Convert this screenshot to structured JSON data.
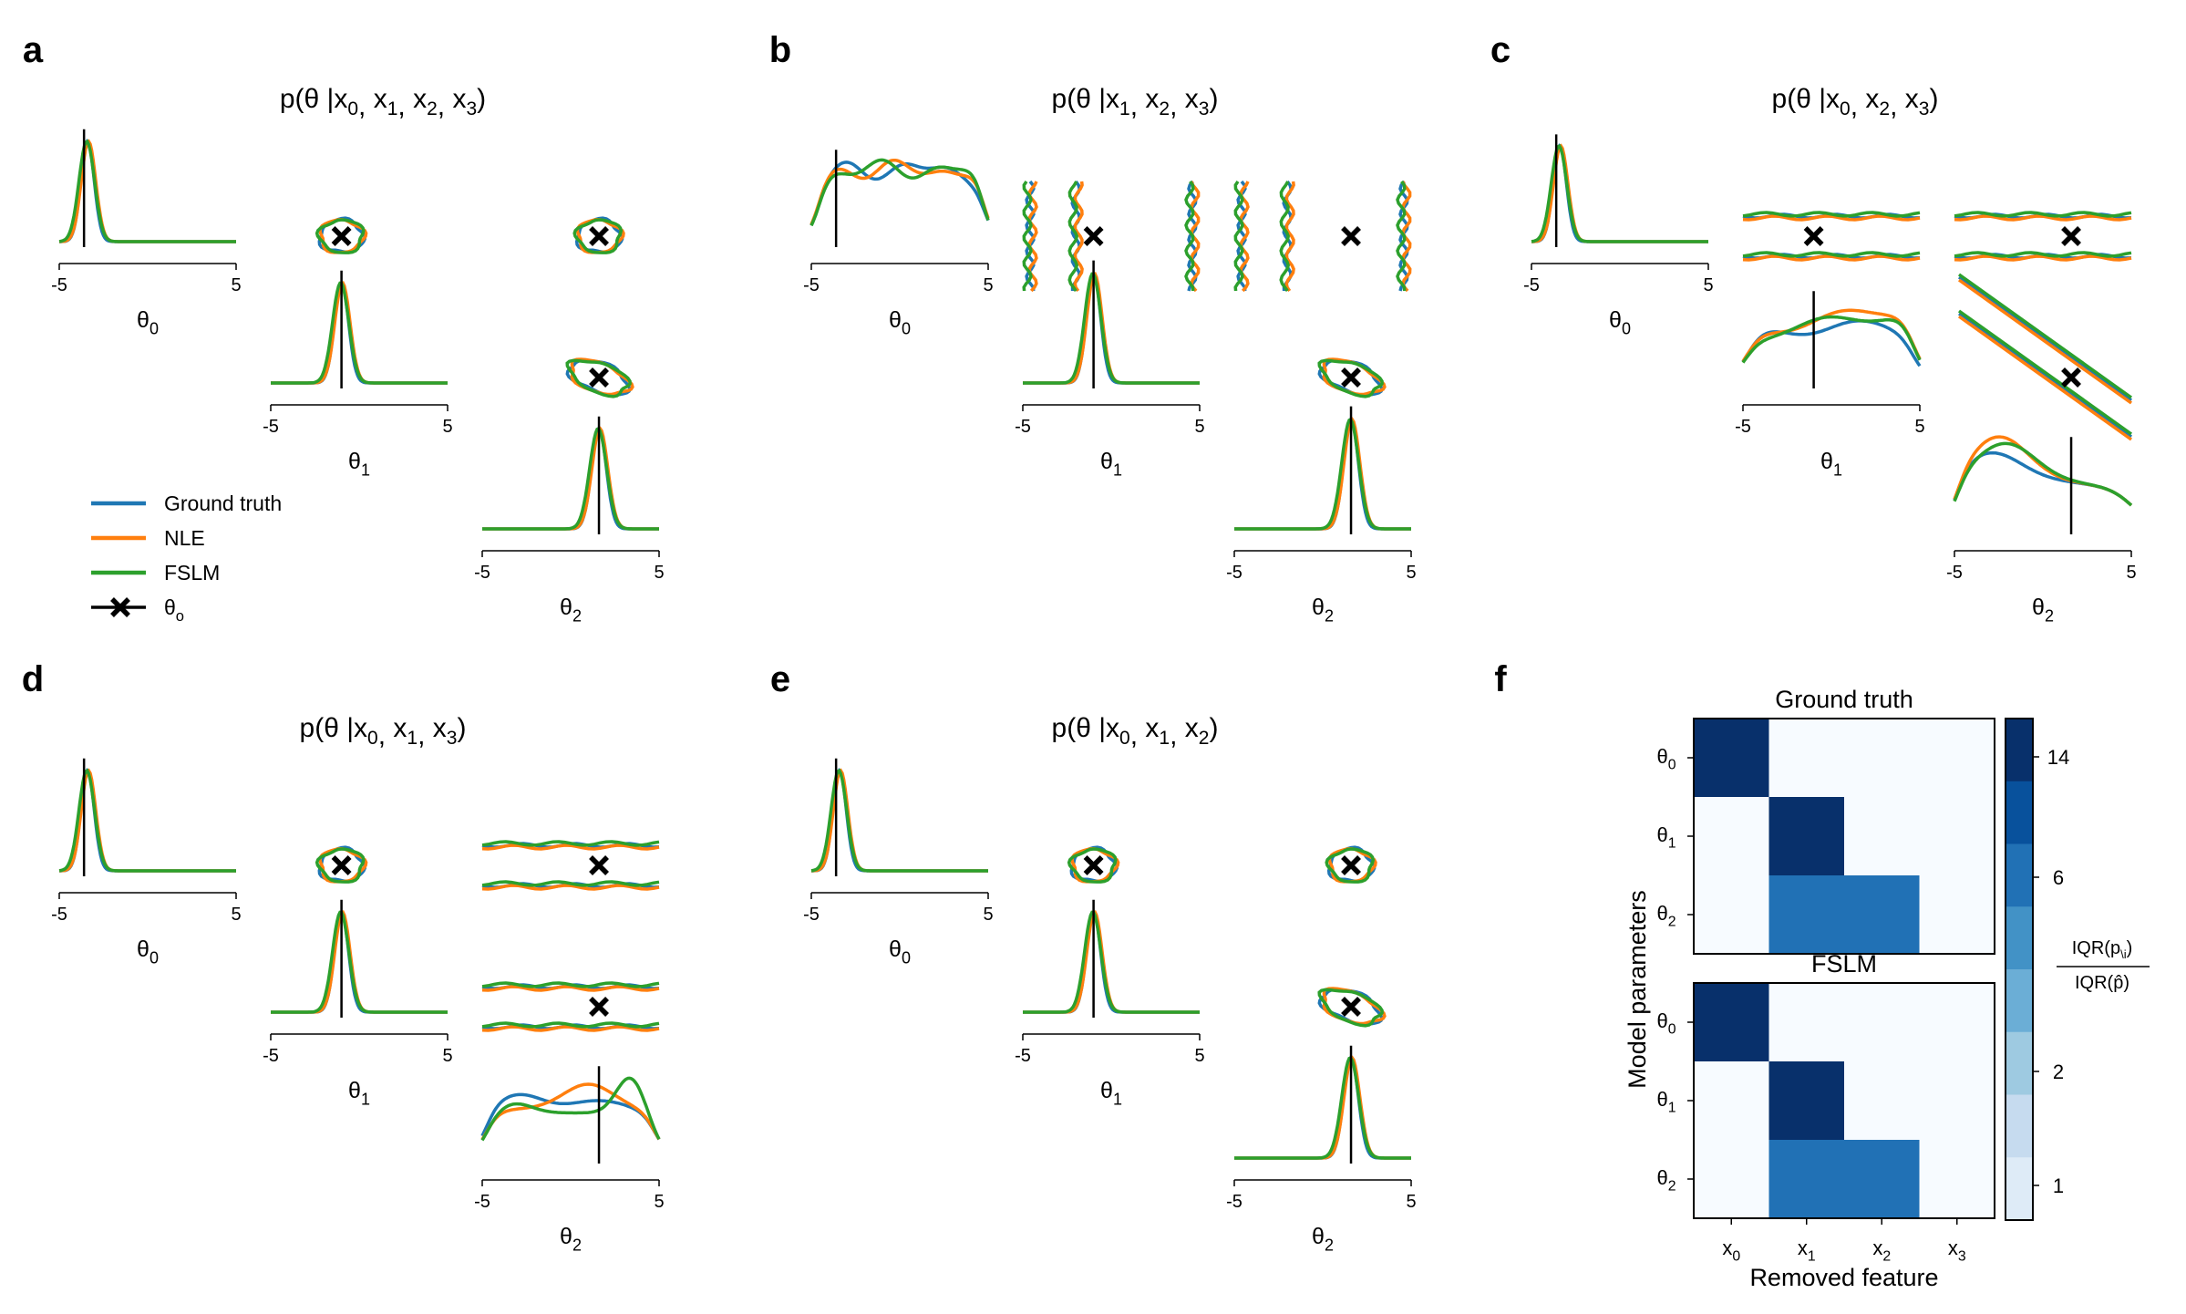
{
  "colors": {
    "ground_truth": "#1f77b4",
    "nle": "#ff7f0e",
    "fslm": "#2ca02c",
    "theta_o": "#000000"
  },
  "legend": {
    "items": [
      {
        "key": "ground_truth",
        "label": "Ground truth"
      },
      {
        "key": "nle",
        "label": "NLE"
      },
      {
        "key": "fslm",
        "label": "FSLM"
      },
      {
        "key": "theta_o",
        "label": "θ",
        "sub": "o"
      }
    ]
  },
  "tick_labels": [
    "-5",
    "5"
  ],
  "param_labels": [
    {
      "base": "θ",
      "sub": "0"
    },
    {
      "base": "θ",
      "sub": "1"
    },
    {
      "base": "θ",
      "sub": "2"
    }
  ],
  "theta_o": [
    -3.6,
    -1.0,
    1.6
  ],
  "panels": [
    {
      "letter": "a",
      "title_prefix": "p(θ |",
      "title_vars": [
        "0",
        "1",
        "2",
        "3"
      ],
      "title_suffix": ")",
      "removed": null
    },
    {
      "letter": "b",
      "title_prefix": "p(θ |",
      "title_vars": [
        "1",
        "2",
        "3"
      ],
      "title_suffix": ")",
      "removed": 0
    },
    {
      "letter": "c",
      "title_prefix": "p(θ |",
      "title_vars": [
        "0",
        "2",
        "3"
      ],
      "title_suffix": ")",
      "removed": 1
    },
    {
      "letter": "d",
      "title_prefix": "p(θ |",
      "title_vars": [
        "0",
        "1",
        "3"
      ],
      "title_suffix": ")",
      "removed": 2
    },
    {
      "letter": "e",
      "title_prefix": "p(θ |",
      "title_vars": [
        "0",
        "1",
        "2"
      ],
      "title_suffix": ")",
      "removed": 3
    }
  ],
  "heatmap": {
    "letter": "f",
    "titles": [
      "Ground truth",
      "FSLM"
    ],
    "ylabel": "Model parameters",
    "xlabel": "Removed feature",
    "row_labels": [
      {
        "base": "θ",
        "sub": "0"
      },
      {
        "base": "θ",
        "sub": "1"
      },
      {
        "base": "θ",
        "sub": "2"
      }
    ],
    "col_labels": [
      {
        "base": "x",
        "sub": "0"
      },
      {
        "base": "x",
        "sub": "1"
      },
      {
        "base": "x",
        "sub": "2"
      },
      {
        "base": "x",
        "sub": "3"
      }
    ],
    "colorbar_ticks": [
      "14",
      "6",
      "2",
      "1"
    ],
    "colorbar_label_top": "IQR(p",
    "colorbar_label_bottom": "IQR(p̂)",
    "colors": [
      "#f7fbff",
      "#deebf7",
      "#c6dbef",
      "#9ecae1",
      "#6baed6",
      "#4292c6",
      "#2171b5",
      "#08519c",
      "#08306b"
    ]
  },
  "chart_data": [
    {
      "type": "heatmap",
      "title": "Ground truth",
      "xlabel": "Removed feature",
      "ylabel": "Model parameters",
      "x": [
        "x0",
        "x1",
        "x2",
        "x3"
      ],
      "y": [
        "θ0",
        "θ1",
        "θ2"
      ],
      "values": [
        [
          15,
          1,
          1,
          1
        ],
        [
          1,
          15,
          1,
          1
        ],
        [
          1,
          9,
          9,
          1
        ]
      ],
      "colorbar_ticks": [
        1,
        2,
        6,
        14
      ]
    },
    {
      "type": "heatmap",
      "title": "FSLM",
      "xlabel": "Removed feature",
      "ylabel": "Model parameters",
      "x": [
        "x0",
        "x1",
        "x2",
        "x3"
      ],
      "y": [
        "θ0",
        "θ1",
        "θ2"
      ],
      "values": [
        [
          15,
          1,
          1,
          1
        ],
        [
          1,
          15,
          1,
          1
        ],
        [
          1,
          9,
          9,
          1
        ]
      ],
      "colorbar_ticks": [
        1,
        2,
        6,
        14
      ]
    },
    {
      "type": "line",
      "panel": "a-e",
      "x_range": [
        -5,
        5
      ],
      "series": [
        {
          "name": "Ground truth"
        },
        {
          "name": "NLE"
        },
        {
          "name": "FSLM"
        }
      ]
    }
  ]
}
